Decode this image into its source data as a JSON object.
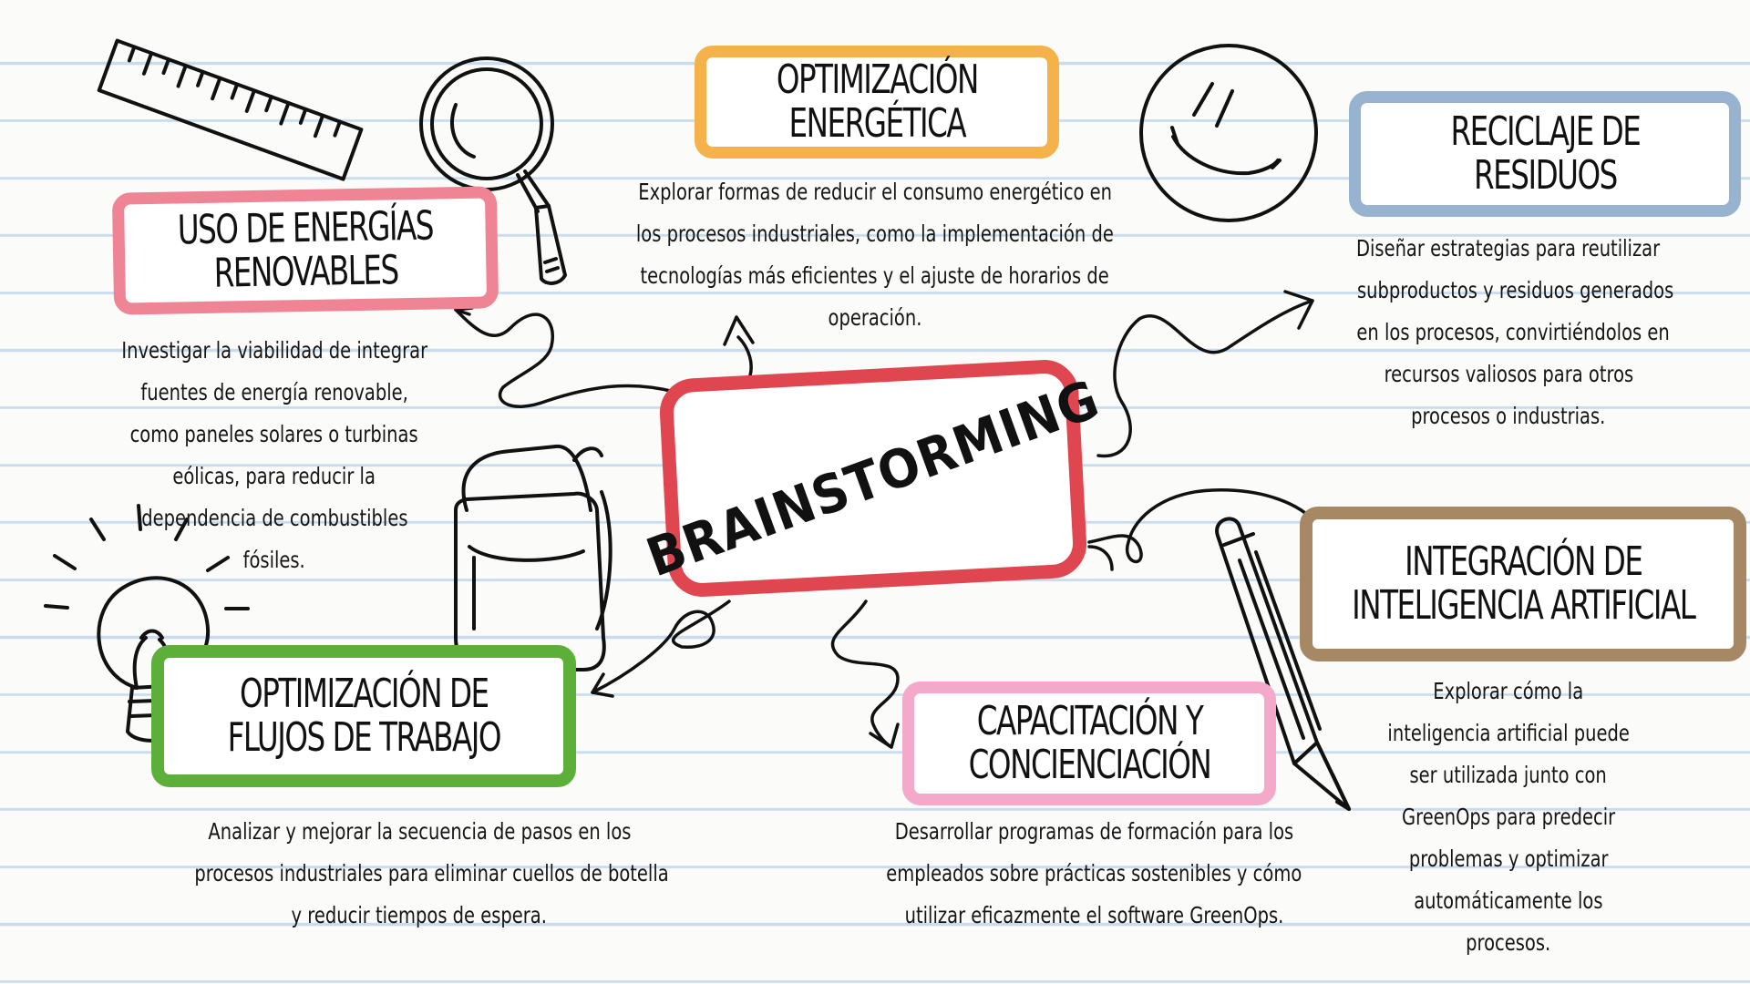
{
  "center": {
    "title": "BRAINSTORMING",
    "color": "#e04650"
  },
  "ideas": [
    {
      "id": "energias",
      "title_line1": "USO DE ENERGÍAS",
      "title_line2": "RENOVABLES",
      "border_color": "#ee8494",
      "description": [
        "Investigar la viabilidad de integrar",
        "fuentes de energía renovable,",
        "como paneles solares o turbinas",
        "eólicas, para reducir la",
        "dependencia de combustibles",
        "fósiles."
      ]
    },
    {
      "id": "optimizacion-energetica",
      "title_line1": "OPTIMIZACIÓN",
      "title_line2": "ENERGÉTICA",
      "border_color": "#f6b24a",
      "description": [
        "Explorar formas de reducir el consumo energético en",
        "los procesos industriales, como la implementación de",
        "tecnologías más eficientes y el ajuste de horarios de",
        "operación."
      ]
    },
    {
      "id": "reciclaje",
      "title_line1": "RECICLAJE DE",
      "title_line2": "RESIDUOS",
      "border_color": "#97b3cf",
      "description": [
        "Diseñar estrategias para reutilizar",
        "subproductos y residuos generados",
        "en los procesos, convirtiéndolos en",
        "recursos valiosos para otros",
        "procesos o industrias."
      ]
    },
    {
      "id": "flujos",
      "title_line1": "OPTIMIZACIÓN DE",
      "title_line2": "FLUJOS DE TRABAJO",
      "border_color": "#5cb03a",
      "description": [
        "Analizar y mejorar la secuencia de pasos en los",
        "procesos industriales para eliminar cuellos de botella",
        "y reducir tiempos de espera."
      ]
    },
    {
      "id": "capacitacion",
      "title_line1": "CAPACITACIÓN Y",
      "title_line2": "CONCIENCIACIÓN",
      "border_color": "#f4a9cb",
      "description": [
        "Desarrollar programas de formación para los",
        "empleados sobre prácticas sostenibles y cómo",
        "utilizar eficazmente el software GreenOps."
      ]
    },
    {
      "id": "ia",
      "title_line1": "INTEGRACIÓN DE",
      "title_line2": "INTELIGENCIA ARTIFICIAL",
      "border_color": "#a68964",
      "description": [
        "Explorar cómo la",
        "inteligencia artificial puede",
        "ser utilizada  junto con",
        "GreenOps para predecir",
        "problemas y optimizar",
        "automáticamente los",
        "procesos."
      ]
    }
  ],
  "decorations": [
    "ruler-icon",
    "magnifier-icon",
    "smiley-icon",
    "backpack-icon",
    "lightbulb-icon",
    "pencil-icon"
  ]
}
